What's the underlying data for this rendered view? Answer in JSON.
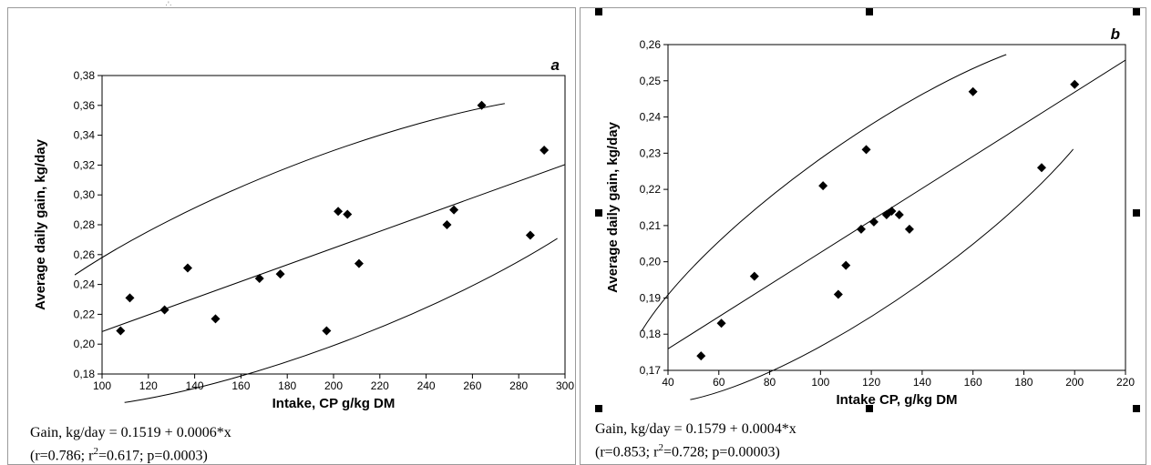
{
  "panels": [
    {
      "letter": "a",
      "caption": {
        "line1": "Gain, kg/day = 0.1519 + 0.0006*x",
        "line2_prefix": "(r=0.786; r",
        "line2_sup": "2",
        "line2_suffix": "=0.617; p=0.0003)"
      }
    },
    {
      "letter": "b",
      "caption": {
        "line1": "Gain, kg/day = 0.1579 + 0.0004*x",
        "line2_prefix": "(r=0.853; r",
        "line2_sup": "2",
        "line2_suffix": "=0.728; p=0.00003)"
      }
    }
  ],
  "chart_data": [
    {
      "type": "scatter",
      "label": "a",
      "xlabel": "Intake, CP g/kg DM",
      "ylabel": "Average daily gain, kg/day",
      "xlim": [
        100,
        300
      ],
      "ylim": [
        0.18,
        0.38
      ],
      "xticks": [
        100,
        120,
        140,
        160,
        180,
        200,
        220,
        240,
        260,
        280,
        300
      ],
      "yticks": [
        0.18,
        0.2,
        0.22,
        0.24,
        0.26,
        0.28,
        0.3,
        0.32,
        0.34,
        0.36,
        0.38
      ],
      "x": [
        108,
        112,
        127,
        137,
        149,
        168,
        177,
        197,
        202,
        206,
        211,
        249,
        252,
        264,
        285,
        291
      ],
      "y": [
        0.209,
        0.231,
        0.223,
        0.251,
        0.217,
        0.244,
        0.247,
        0.209,
        0.289,
        0.287,
        0.254,
        0.28,
        0.29,
        0.36,
        0.273,
        0.33
      ],
      "regression": {
        "intercept": 0.1519,
        "slope": 0.0006
      },
      "grid": false
    },
    {
      "type": "scatter",
      "label": "b",
      "xlabel": "Intake CP, g/kg DM",
      "ylabel": "Average daily gain, kg/day",
      "xlim": [
        40,
        220
      ],
      "ylim": [
        0.17,
        0.26
      ],
      "xticks": [
        40,
        60,
        80,
        100,
        120,
        140,
        160,
        180,
        200,
        220
      ],
      "yticks": [
        0.17,
        0.18,
        0.19,
        0.2,
        0.21,
        0.22,
        0.23,
        0.24,
        0.25,
        0.26
      ],
      "x": [
        53,
        61,
        74,
        101,
        107,
        110,
        116,
        118,
        121,
        126,
        128,
        131,
        135,
        160,
        187,
        200
      ],
      "y": [
        0.174,
        0.183,
        0.196,
        0.221,
        0.191,
        0.199,
        0.209,
        0.231,
        0.211,
        0.213,
        0.214,
        0.213,
        0.209,
        0.247,
        0.226,
        0.249
      ],
      "regression": {
        "intercept": 0.1579,
        "slope": 0.0004
      },
      "grid": false
    }
  ]
}
